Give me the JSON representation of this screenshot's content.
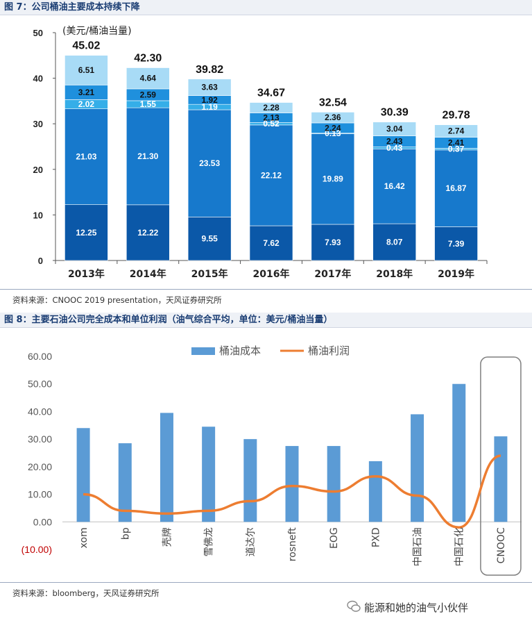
{
  "fig7": {
    "title": "图 7：公司桶油主要成本持续下降",
    "source": "资料来源：CNOOC 2019 presentation，天风证券研究所"
  },
  "fig8": {
    "title": "图 8：主要石油公司完全成本和单位利润（油气综合平均，单位：美元/桶油当量）",
    "source": "资料来源：bloomberg，天风证券研究所"
  },
  "watermark": "能源和她的油气小伙伴",
  "colors": {
    "seg1": "#0b58a8",
    "seg2": "#1779cc",
    "seg3": "#35aee8",
    "seg4": "#1f90dd",
    "seg5": "#a8dbf6",
    "bar8": "#5b9bd5",
    "line8": "#ed7d31",
    "negative_tick": "#c00000"
  },
  "chart_data": [
    {
      "type": "bar",
      "stacked": true,
      "unit_label": "(美元/桶油当量)",
      "categories": [
        "2013年",
        "2014年",
        "2015年",
        "2016年",
        "2017年",
        "2018年",
        "2019年"
      ],
      "totals": [
        "45.02",
        "42.30",
        "39.82",
        "34.67",
        "32.54",
        "30.39",
        "29.78"
      ],
      "series": [
        {
          "name": "seg1",
          "values": [
            12.25,
            12.22,
            9.55,
            7.62,
            7.93,
            8.07,
            7.39
          ],
          "labels": [
            "12.25",
            "12.22",
            "9.55",
            "7.62",
            "7.93",
            "8.07",
            "7.39"
          ]
        },
        {
          "name": "seg2",
          "values": [
            21.03,
            21.3,
            23.53,
            22.12,
            19.89,
            16.42,
            16.87
          ],
          "labels": [
            "21.03",
            "21.30",
            "23.53",
            "22.12",
            "19.89",
            "16.42",
            "16.87"
          ]
        },
        {
          "name": "seg3",
          "values": [
            2.02,
            1.55,
            1.19,
            0.52,
            0.13,
            0.43,
            0.37
          ],
          "labels": [
            "2.02",
            "1.55",
            "1.19",
            "0.52",
            "0.13",
            "0.43",
            "0.37"
          ]
        },
        {
          "name": "seg4",
          "values": [
            3.21,
            2.59,
            1.92,
            2.13,
            2.24,
            2.43,
            2.41
          ],
          "labels": [
            "3.21",
            "2.59",
            "1.92",
            "2.13",
            "2.24",
            "2.43",
            "2.41"
          ]
        },
        {
          "name": "seg5",
          "values": [
            6.51,
            4.64,
            3.63,
            2.28,
            2.36,
            3.04,
            2.74
          ],
          "labels": [
            "6.51",
            "4.64",
            "3.63",
            "2.28",
            "2.36",
            "3.04",
            "2.74"
          ]
        }
      ],
      "ylim": [
        0,
        50
      ],
      "yticks": [
        0,
        10,
        20,
        30,
        40,
        50
      ],
      "ytick_labels": [
        "0",
        "10",
        "20",
        "30",
        "40",
        "50"
      ]
    },
    {
      "type": "bar+line",
      "categories": [
        "xom",
        "bp",
        "壳牌",
        "雪佛龙",
        "道达尔",
        "rosneft",
        "EOG",
        "PXD",
        "中国石油",
        "中国石化",
        "CNOOC"
      ],
      "legend": [
        "桶油成本",
        "桶油利润"
      ],
      "series": [
        {
          "name": "桶油成本",
          "type": "bar",
          "values": [
            34,
            28.5,
            39.5,
            34.5,
            30,
            27.5,
            27.5,
            22,
            39,
            50,
            31
          ]
        },
        {
          "name": "桶油利润",
          "type": "line",
          "values": [
            10,
            4,
            3,
            4,
            7.5,
            13,
            11,
            16.5,
            9.5,
            -2,
            24
          ]
        }
      ],
      "ylim": [
        -10,
        60
      ],
      "yticks": [
        -10,
        0,
        10,
        20,
        30,
        40,
        50,
        60
      ],
      "ytick_labels": [
        "(10.00)",
        "0.00",
        "10.00",
        "20.00",
        "30.00",
        "40.00",
        "50.00",
        "60.00"
      ],
      "highlight": "CNOOC"
    }
  ]
}
